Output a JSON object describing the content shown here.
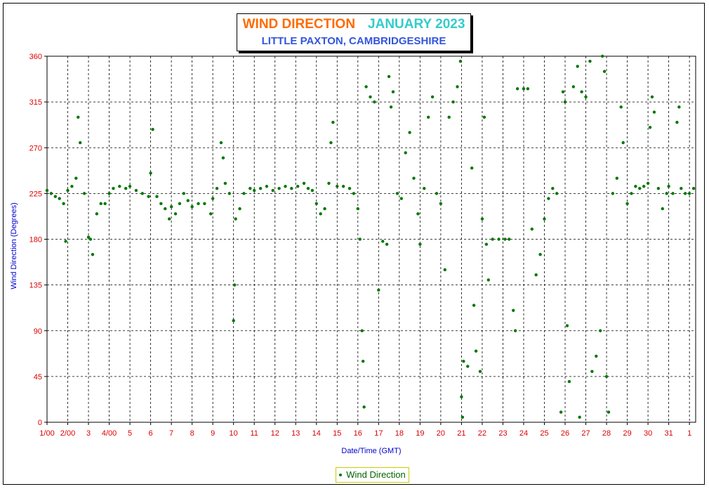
{
  "chart_data": {
    "type": "scatter",
    "title": "WIND DIRECTION",
    "title_date": "JANUARY 2023",
    "subtitle": "LITTLE PAXTON, CAMBRIDGESHIRE",
    "xlabel": "Date/Time (GMT)",
    "ylabel": "Wind Direction (Degrees)",
    "ylim": [
      0,
      360
    ],
    "yticks": [
      0,
      45,
      90,
      135,
      180,
      225,
      270,
      315,
      360
    ],
    "xlim": [
      1,
      32.3
    ],
    "xticks": [
      {
        "pos": 1,
        "label": "1/00"
      },
      {
        "pos": 2,
        "label": "2/00"
      },
      {
        "pos": 3,
        "label": "3"
      },
      {
        "pos": 4,
        "label": "4/00"
      },
      {
        "pos": 5,
        "label": "5"
      },
      {
        "pos": 6,
        "label": "6"
      },
      {
        "pos": 7,
        "label": "7"
      },
      {
        "pos": 8,
        "label": "8"
      },
      {
        "pos": 9,
        "label": "9"
      },
      {
        "pos": 10,
        "label": "10"
      },
      {
        "pos": 11,
        "label": "11"
      },
      {
        "pos": 12,
        "label": "12"
      },
      {
        "pos": 13,
        "label": "13"
      },
      {
        "pos": 14,
        "label": "14"
      },
      {
        "pos": 15,
        "label": "15"
      },
      {
        "pos": 16,
        "label": "16"
      },
      {
        "pos": 17,
        "label": "17"
      },
      {
        "pos": 18,
        "label": "18"
      },
      {
        "pos": 19,
        "label": "19"
      },
      {
        "pos": 20,
        "label": "20"
      },
      {
        "pos": 21,
        "label": "21"
      },
      {
        "pos": 22,
        "label": "22"
      },
      {
        "pos": 23,
        "label": "23"
      },
      {
        "pos": 24,
        "label": "24"
      },
      {
        "pos": 25,
        "label": "25"
      },
      {
        "pos": 26,
        "label": "26"
      },
      {
        "pos": 27,
        "label": "27"
      },
      {
        "pos": 28,
        "label": "28"
      },
      {
        "pos": 29,
        "label": "29"
      },
      {
        "pos": 30,
        "label": "30"
      },
      {
        "pos": 31,
        "label": "31"
      },
      {
        "pos": 32,
        "label": "1"
      }
    ],
    "grid": true,
    "legend_position": "bottom-center",
    "series": [
      {
        "name": "Wind Direction",
        "color": "#007700",
        "points": [
          [
            1.0,
            228
          ],
          [
            1.2,
            225
          ],
          [
            1.4,
            222
          ],
          [
            1.6,
            220
          ],
          [
            1.8,
            215
          ],
          [
            1.9,
            178
          ],
          [
            2.0,
            228
          ],
          [
            2.2,
            232
          ],
          [
            2.4,
            240
          ],
          [
            2.5,
            300
          ],
          [
            2.6,
            275
          ],
          [
            2.8,
            225
          ],
          [
            3.0,
            182
          ],
          [
            3.1,
            180
          ],
          [
            3.2,
            165
          ],
          [
            3.4,
            205
          ],
          [
            3.6,
            215
          ],
          [
            3.8,
            215
          ],
          [
            4.0,
            225
          ],
          [
            4.2,
            230
          ],
          [
            4.5,
            232
          ],
          [
            4.8,
            230
          ],
          [
            5.0,
            232
          ],
          [
            5.3,
            228
          ],
          [
            5.6,
            225
          ],
          [
            5.9,
            222
          ],
          [
            6.0,
            245
          ],
          [
            6.1,
            288
          ],
          [
            6.3,
            222
          ],
          [
            6.5,
            215
          ],
          [
            6.7,
            210
          ],
          [
            6.9,
            200
          ],
          [
            7.0,
            212
          ],
          [
            7.2,
            205
          ],
          [
            7.4,
            215
          ],
          [
            7.6,
            225
          ],
          [
            7.8,
            218
          ],
          [
            8.0,
            212
          ],
          [
            8.3,
            215
          ],
          [
            8.6,
            215
          ],
          [
            8.9,
            205
          ],
          [
            9.0,
            220
          ],
          [
            9.2,
            230
          ],
          [
            9.4,
            275
          ],
          [
            9.5,
            260
          ],
          [
            9.6,
            235
          ],
          [
            9.8,
            225
          ],
          [
            10.0,
            100
          ],
          [
            10.05,
            135
          ],
          [
            10.1,
            200
          ],
          [
            10.3,
            210
          ],
          [
            10.5,
            225
          ],
          [
            10.8,
            230
          ],
          [
            11.0,
            228
          ],
          [
            11.3,
            230
          ],
          [
            11.6,
            232
          ],
          [
            11.9,
            228
          ],
          [
            12.2,
            230
          ],
          [
            12.5,
            232
          ],
          [
            12.8,
            230
          ],
          [
            13.1,
            232
          ],
          [
            13.4,
            235
          ],
          [
            13.6,
            230
          ],
          [
            13.8,
            228
          ],
          [
            14.0,
            215
          ],
          [
            14.2,
            205
          ],
          [
            14.4,
            210
          ],
          [
            14.6,
            235
          ],
          [
            14.7,
            275
          ],
          [
            14.8,
            295
          ],
          [
            15.0,
            232
          ],
          [
            15.3,
            232
          ],
          [
            15.6,
            230
          ],
          [
            15.8,
            225
          ],
          [
            16.0,
            210
          ],
          [
            16.1,
            180
          ],
          [
            16.2,
            90
          ],
          [
            16.25,
            60
          ],
          [
            16.3,
            15
          ],
          [
            16.4,
            330
          ],
          [
            16.6,
            320
          ],
          [
            16.8,
            315
          ],
          [
            17.0,
            130
          ],
          [
            17.2,
            178
          ],
          [
            17.4,
            175
          ],
          [
            17.5,
            340
          ],
          [
            17.6,
            310
          ],
          [
            17.7,
            325
          ],
          [
            17.9,
            225
          ],
          [
            18.1,
            220
          ],
          [
            18.3,
            265
          ],
          [
            18.5,
            285
          ],
          [
            18.7,
            240
          ],
          [
            18.9,
            205
          ],
          [
            19.0,
            175
          ],
          [
            19.2,
            230
          ],
          [
            19.4,
            300
          ],
          [
            19.6,
            320
          ],
          [
            19.8,
            225
          ],
          [
            20.0,
            215
          ],
          [
            20.2,
            150
          ],
          [
            20.4,
            300
          ],
          [
            20.6,
            315
          ],
          [
            20.8,
            330
          ],
          [
            20.95,
            355
          ],
          [
            21.0,
            25
          ],
          [
            21.05,
            5
          ],
          [
            21.1,
            60
          ],
          [
            21.3,
            55
          ],
          [
            21.5,
            250
          ],
          [
            21.6,
            115
          ],
          [
            21.7,
            70
          ],
          [
            21.9,
            50
          ],
          [
            22.0,
            200
          ],
          [
            22.1,
            300
          ],
          [
            22.2,
            175
          ],
          [
            22.3,
            140
          ],
          [
            22.5,
            180
          ],
          [
            22.8,
            180
          ],
          [
            23.1,
            180
          ],
          [
            23.3,
            180
          ],
          [
            23.5,
            110
          ],
          [
            23.6,
            90
          ],
          [
            23.7,
            328
          ],
          [
            24.0,
            328
          ],
          [
            24.2,
            328
          ],
          [
            24.4,
            190
          ],
          [
            24.6,
            145
          ],
          [
            24.8,
            165
          ],
          [
            25.0,
            200
          ],
          [
            25.2,
            220
          ],
          [
            25.4,
            230
          ],
          [
            25.6,
            225
          ],
          [
            25.8,
            10
          ],
          [
            25.9,
            325
          ],
          [
            26.0,
            315
          ],
          [
            26.1,
            95
          ],
          [
            26.2,
            40
          ],
          [
            26.4,
            330
          ],
          [
            26.6,
            350
          ],
          [
            26.7,
            5
          ],
          [
            26.8,
            325
          ],
          [
            27.0,
            320
          ],
          [
            27.2,
            355
          ],
          [
            27.3,
            50
          ],
          [
            27.5,
            65
          ],
          [
            27.7,
            90
          ],
          [
            27.8,
            360
          ],
          [
            27.9,
            345
          ],
          [
            28.0,
            45
          ],
          [
            28.1,
            10
          ],
          [
            28.3,
            225
          ],
          [
            28.5,
            240
          ],
          [
            28.7,
            310
          ],
          [
            28.8,
            275
          ],
          [
            29.0,
            215
          ],
          [
            29.2,
            225
          ],
          [
            29.4,
            232
          ],
          [
            29.6,
            230
          ],
          [
            29.8,
            232
          ],
          [
            30.0,
            235
          ],
          [
            30.1,
            290
          ],
          [
            30.2,
            320
          ],
          [
            30.3,
            305
          ],
          [
            30.5,
            230
          ],
          [
            30.7,
            210
          ],
          [
            30.9,
            225
          ],
          [
            31.0,
            232
          ],
          [
            31.2,
            225
          ],
          [
            31.4,
            295
          ],
          [
            31.5,
            310
          ],
          [
            31.6,
            230
          ],
          [
            31.8,
            225
          ],
          [
            32.0,
            225
          ],
          [
            32.2,
            230
          ]
        ]
      }
    ]
  }
}
